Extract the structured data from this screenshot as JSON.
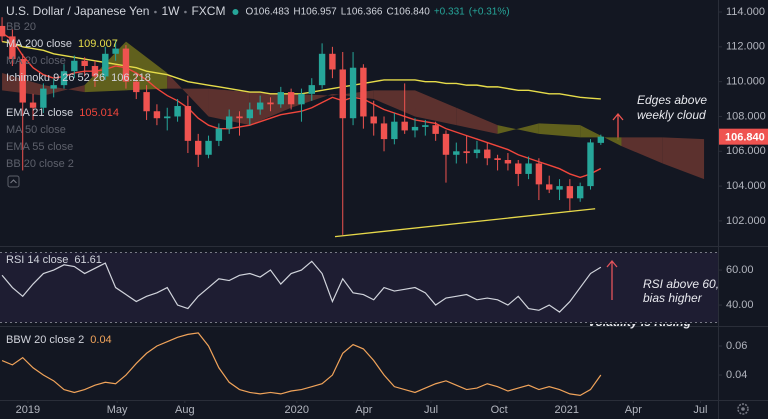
{
  "chart_data": [
    {
      "type": "candlestick",
      "title": "U.S. Dollar / Japanese Yen",
      "interval": "1W",
      "exchange": "FXCM",
      "ohlc": [
        {
          "value": 106.483,
          "label": "O106.483"
        },
        {
          "value": 106.957,
          "label": "H106.957"
        },
        {
          "value": 106.366,
          "label": "L106.366"
        },
        {
          "value": 106.84,
          "label": "C106.840"
        }
      ],
      "change": {
        "value": 0.331,
        "label": "+0.331"
      },
      "change_pct": {
        "value": 0.31,
        "label": "(+0.31%)"
      },
      "up_color": "#26a69a",
      "down_color": "#ef5350",
      "x": [
        -5,
        -3,
        -1,
        1,
        3,
        5,
        7,
        9,
        11,
        13,
        15,
        17,
        19,
        21,
        23,
        25,
        27,
        29,
        31,
        33,
        35,
        37,
        39,
        41,
        43,
        45,
        47,
        49,
        51,
        53,
        55,
        57,
        59,
        61,
        63,
        65,
        67,
        69,
        71,
        73,
        75,
        77,
        79,
        81,
        83,
        85,
        87,
        89,
        91,
        93,
        95,
        97,
        99,
        101,
        103,
        105,
        107,
        109,
        111
      ],
      "open": [
        113.2,
        112.6,
        111.3,
        108.8,
        108.5,
        109.6,
        109.8,
        110.6,
        111.2,
        110.9,
        110.3,
        111.6,
        111.9,
        110.0,
        109.4,
        108.3,
        107.9,
        108.0,
        108.6,
        106.6,
        105.8,
        106.6,
        107.3,
        108.0,
        107.9,
        108.4,
        108.8,
        108.7,
        109.4,
        108.7,
        109.3,
        109.8,
        111.6,
        110.7,
        107.9,
        110.8,
        108.0,
        107.6,
        106.7,
        107.7,
        107.2,
        107.4,
        107.5,
        107.0,
        105.8,
        106.0,
        105.9,
        106.1,
        105.6,
        105.5,
        105.3,
        104.7,
        105.3,
        104.1,
        103.8,
        104.0,
        103.3,
        104.0,
        106.483
      ],
      "high": [
        113.7,
        113.0,
        111.6,
        109.3,
        109.9,
        110.2,
        111.0,
        111.5,
        111.4,
        111.2,
        112.0,
        112.4,
        112.1,
        110.5,
        109.8,
        108.7,
        108.5,
        109.0,
        109.2,
        107.0,
        106.9,
        107.6,
        108.4,
        108.3,
        108.8,
        109.2,
        109.1,
        109.7,
        109.6,
        109.6,
        110.2,
        112.2,
        112.0,
        111.7,
        111.7,
        111.0,
        108.9,
        108.0,
        108.2,
        109.9,
        107.9,
        107.8,
        107.7,
        107.2,
        106.5,
        106.9,
        106.6,
        106.5,
        105.8,
        105.9,
        105.5,
        105.7,
        105.6,
        104.6,
        104.4,
        104.4,
        104.2,
        106.7,
        106.957
      ],
      "low": [
        112.3,
        110.9,
        104.9,
        107.8,
        108.2,
        109.1,
        109.6,
        110.2,
        110.3,
        109.7,
        110.1,
        111.2,
        109.6,
        109.0,
        107.8,
        107.5,
        107.2,
        107.7,
        105.9,
        105.1,
        105.6,
        106.3,
        107.0,
        106.9,
        107.5,
        108.1,
        108.3,
        108.5,
        108.4,
        107.7,
        108.9,
        109.6,
        110.2,
        101.2,
        107.5,
        107.3,
        106.9,
        106.0,
        106.4,
        107.0,
        106.8,
        106.9,
        106.6,
        104.2,
        105.3,
        105.3,
        105.6,
        105.2,
        104.9,
        104.9,
        104.0,
        104.4,
        103.2,
        103.6,
        103.2,
        102.6,
        103.1,
        103.8,
        106.366
      ],
      "close": [
        112.6,
        111.3,
        108.8,
        108.5,
        109.6,
        109.8,
        110.6,
        111.2,
        110.9,
        110.3,
        111.6,
        111.9,
        110.0,
        109.4,
        108.3,
        107.9,
        108.0,
        108.6,
        106.6,
        105.8,
        106.6,
        107.3,
        108.0,
        107.9,
        108.4,
        108.8,
        108.7,
        109.4,
        108.7,
        109.3,
        109.8,
        111.6,
        110.7,
        107.9,
        110.8,
        108.0,
        107.6,
        106.7,
        107.7,
        107.2,
        107.4,
        107.5,
        107.0,
        105.8,
        106.0,
        105.9,
        106.1,
        105.6,
        105.5,
        105.3,
        104.7,
        105.3,
        104.1,
        103.8,
        104.0,
        103.3,
        104.0,
        106.509,
        106.84
      ],
      "series": [
        {
          "name": "MA 200 close",
          "color": "#e6dc4a",
          "values": [
            112.3,
            112.2,
            112.0,
            111.9,
            111.8,
            111.6,
            111.5,
            111.4,
            111.3,
            111.2,
            111.1,
            111.0,
            110.9,
            110.8,
            110.6,
            110.5,
            110.4,
            110.2,
            110.0,
            109.9,
            109.8,
            109.7,
            109.6,
            109.5,
            109.4,
            109.4,
            109.3,
            109.3,
            109.3,
            109.3,
            109.4,
            109.5,
            109.6,
            109.7,
            109.8,
            109.9,
            110.0,
            110.1,
            110.1,
            110.1,
            110.1,
            110.0,
            110.0,
            109.9,
            109.9,
            109.8,
            109.8,
            109.7,
            109.7,
            109.6,
            109.5,
            109.5,
            109.4,
            109.3,
            109.3,
            109.2,
            109.1,
            109.05,
            109.007
          ]
        },
        {
          "name": "EMA 21 close",
          "color": "#f0463c",
          "values": [
            112.8,
            112.4,
            111.5,
            110.8,
            110.4,
            110.2,
            110.3,
            110.5,
            110.6,
            110.6,
            110.7,
            110.9,
            110.8,
            110.5,
            110.1,
            109.6,
            109.2,
            108.9,
            108.5,
            107.9,
            107.5,
            107.3,
            107.3,
            107.4,
            107.5,
            107.7,
            107.9,
            108.1,
            108.2,
            108.3,
            108.5,
            108.8,
            109.1,
            108.9,
            109.1,
            109.0,
            108.7,
            108.4,
            108.2,
            108.0,
            107.8,
            107.7,
            107.6,
            107.3,
            107.1,
            106.9,
            106.7,
            106.5,
            106.3,
            106.1,
            105.8,
            105.6,
            105.4,
            105.2,
            105.0,
            104.7,
            104.5,
            104.7,
            105.014
          ]
        }
      ],
      "ichimoku": {
        "name": "Ichimoku 9 26 52 26",
        "value": 106.218,
        "bull_color": "#6f6d1c",
        "bear_color": "#6a3630",
        "x": [
          -5,
          3,
          11,
          19,
          27,
          35,
          43,
          51,
          59,
          67,
          75,
          83,
          91,
          99,
          107,
          115,
          123,
          131
        ],
        "span_a": [
          109.5,
          109.2,
          109.8,
          112.3,
          110.5,
          108.0,
          107.5,
          108.5,
          109.3,
          109.0,
          108.0,
          107.5,
          107.0,
          107.6,
          107.5,
          106.3,
          105.3,
          104.4
        ],
        "span_b": [
          110.5,
          109.8,
          109.4,
          109.5,
          109.6,
          109.6,
          109.4,
          109.3,
          109.2,
          109.5,
          109.5,
          108.5,
          107.5,
          107.0,
          106.8,
          106.8,
          106.8,
          106.7
        ]
      },
      "hidden_indicators": [
        "BB 20",
        "MA 20 close",
        "MA 50 close",
        "EMA 55 close",
        "BB 20 close 2"
      ],
      "trendline": {
        "x": [
          59.5,
          109.9
        ],
        "values": [
          101.1,
          102.7
        ],
        "color": "#e6d84a"
      },
      "price_tag": {
        "value": 106.84,
        "label": "106.840",
        "color": "#ef5350"
      },
      "annotation": [
        "Edges above",
        "weekly cloud"
      ],
      "xlim": [
        -5.4,
        133.7
      ],
      "ylim": [
        100.56,
        114.69
      ],
      "yticks": [
        {
          "value": 102,
          "label": "102.000"
        },
        {
          "value": 104,
          "label": "104.000"
        },
        {
          "value": 106,
          "label": "106.000"
        },
        {
          "value": 108,
          "label": "108.000"
        },
        {
          "value": 110,
          "label": "110.000"
        },
        {
          "value": 112,
          "label": "112.000"
        },
        {
          "value": 114,
          "label": "114.000"
        }
      ]
    },
    {
      "type": "line",
      "series": [
        {
          "name": "RSI 14 close",
          "color": "#d1d4dc",
          "values": [
            57,
            50,
            45,
            52,
            58,
            60,
            63,
            62,
            58,
            61,
            64,
            50,
            46,
            42,
            45,
            47,
            50,
            40,
            38,
            45,
            50,
            55,
            54,
            57,
            58,
            56,
            60,
            52,
            58,
            60,
            65,
            58,
            42,
            55,
            47,
            46,
            43,
            50,
            48,
            49,
            50,
            47,
            40,
            44,
            45,
            46,
            43,
            44,
            43,
            40,
            45,
            38,
            37,
            40,
            36,
            42,
            50,
            58,
            61.61
          ]
        }
      ],
      "bands": [
        70,
        30
      ],
      "band_color": "#7e57c2",
      "annotation": [
        "RSI above 60,",
        "bias higher"
      ],
      "xlim": [
        -5.4,
        133.7
      ],
      "ylim": [
        28.6,
        72.6
      ],
      "yticks": [
        {
          "value": 40,
          "label": "40.00"
        },
        {
          "value": 60,
          "label": "60.00"
        }
      ]
    },
    {
      "type": "line",
      "series": [
        {
          "name": "BBW 20 close 2",
          "color": "#f0a35a",
          "values": [
            0.05,
            0.047,
            0.052,
            0.045,
            0.04,
            0.036,
            0.03,
            0.028,
            0.03,
            0.033,
            0.035,
            0.034,
            0.04,
            0.048,
            0.055,
            0.06,
            0.063,
            0.066,
            0.068,
            0.069,
            0.06,
            0.045,
            0.035,
            0.03,
            0.028,
            0.027,
            0.028,
            0.027,
            0.029,
            0.03,
            0.032,
            0.034,
            0.04,
            0.055,
            0.061,
            0.058,
            0.05,
            0.04,
            0.032,
            0.03,
            0.028,
            0.031,
            0.034,
            0.036,
            0.033,
            0.03,
            0.031,
            0.034,
            0.032,
            0.029,
            0.031,
            0.033,
            0.03,
            0.032,
            0.03,
            0.027,
            0.026,
            0.03,
            0.04
          ]
        }
      ],
      "annotation": [
        "Volatility is Rising"
      ],
      "xlim": [
        -5.4,
        133.7
      ],
      "ylim": [
        0.0228,
        0.0724
      ],
      "yticks": [
        0.04,
        0.06
      ],
      "xticks": [
        {
          "value": 0,
          "label": "2019"
        },
        {
          "value": 17.3,
          "label": "May"
        },
        {
          "value": 30.4,
          "label": "Aug"
        },
        {
          "value": 52.1,
          "label": "2020"
        },
        {
          "value": 65.1,
          "label": "Apr"
        },
        {
          "value": 78.1,
          "label": "Jul"
        },
        {
          "value": 91.3,
          "label": "Oct"
        },
        {
          "value": 104.4,
          "label": "2021"
        },
        {
          "value": 117.3,
          "label": "Apr"
        },
        {
          "value": 130.3,
          "label": "Jul"
        }
      ]
    }
  ]
}
